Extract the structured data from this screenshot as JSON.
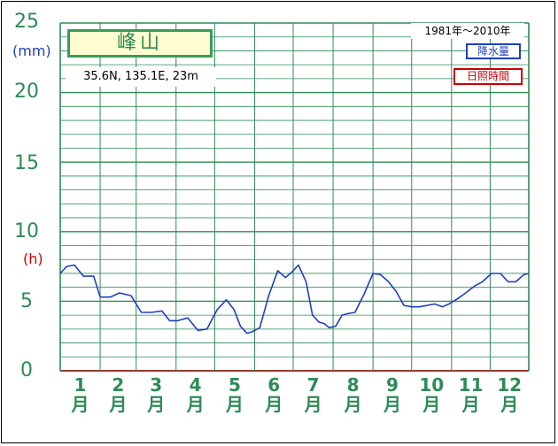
{
  "station": {
    "name": "峰山",
    "coords": "35.6N,  135.1E,  23m"
  },
  "period": "1981年〜2010年",
  "legend": {
    "precipitation": "降水量",
    "sunshine": "日照時間"
  },
  "units": {
    "left": "(mm)",
    "right": "(h)"
  },
  "y_ticks": [
    "25",
    "20",
    "15",
    "10",
    "5",
    "0"
  ],
  "colors": {
    "grid": "#2e8b57",
    "sunshine_line": "#1f3fbf",
    "tick_text": "#2e8b57",
    "mm_unit": "#1f3fbf",
    "h_unit": "#cc0000"
  },
  "months": [
    {
      "num": "1",
      "suffix": "月"
    },
    {
      "num": "2",
      "suffix": "月"
    },
    {
      "num": "3",
      "suffix": "月"
    },
    {
      "num": "4",
      "suffix": "月"
    },
    {
      "num": "5",
      "suffix": "月"
    },
    {
      "num": "6",
      "suffix": "月"
    },
    {
      "num": "7",
      "suffix": "月"
    },
    {
      "num": "8",
      "suffix": "月"
    },
    {
      "num": "9",
      "suffix": "月"
    },
    {
      "num": "10",
      "suffix": "月"
    },
    {
      "num": "11",
      "suffix": "月"
    },
    {
      "num": "12",
      "suffix": "月"
    }
  ],
  "chart_data": {
    "type": "line",
    "ylim": [
      0,
      25
    ],
    "xlim": [
      1,
      365
    ],
    "grid": true,
    "legend_placement": "top-right",
    "series": [
      {
        "name": "日照時間",
        "x": [
          1,
          6,
          12,
          19,
          27,
          32,
          40,
          47,
          56,
          64,
          72,
          80,
          86,
          92,
          100,
          108,
          115,
          123,
          130,
          136,
          141,
          146,
          150,
          156,
          163,
          170,
          176,
          181,
          186,
          192,
          197,
          202,
          206,
          210,
          215,
          220,
          224,
          230,
          237,
          244,
          250,
          256,
          262,
          268,
          274,
          280,
          286,
          292,
          298,
          303,
          310,
          316,
          323,
          329,
          336,
          343,
          349,
          355,
          361,
          365
        ],
        "values": [
          7.0,
          7.5,
          7.6,
          6.8,
          6.8,
          5.3,
          5.3,
          5.6,
          5.4,
          4.2,
          4.2,
          4.3,
          3.6,
          3.6,
          3.8,
          2.9,
          3.0,
          4.4,
          5.1,
          4.4,
          3.2,
          2.7,
          2.8,
          3.1,
          5.4,
          7.2,
          6.7,
          7.1,
          7.6,
          6.4,
          4.0,
          3.5,
          3.4,
          3.1,
          3.2,
          4.0,
          4.1,
          4.2,
          5.5,
          7.0,
          6.9,
          6.4,
          5.7,
          4.7,
          4.6,
          4.6,
          4.7,
          4.8,
          4.6,
          4.8,
          5.2,
          5.6,
          6.1,
          6.4,
          7.0,
          7.0,
          6.4,
          6.4,
          6.9,
          7.0
        ]
      }
    ]
  }
}
